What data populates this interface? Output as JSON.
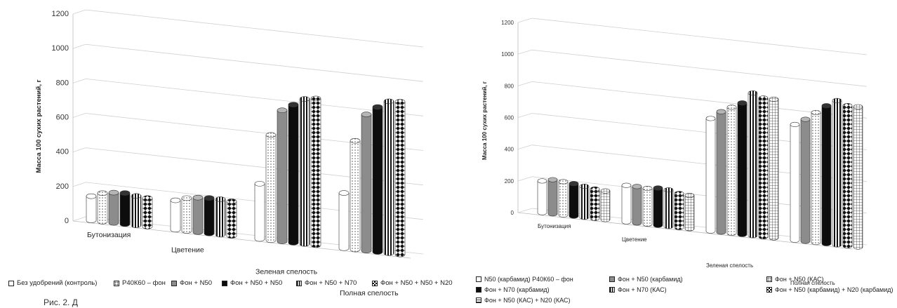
{
  "chart_data": [
    {
      "type": "bar",
      "ylabel": "Масса 100 сухих растений, г",
      "ylim": [
        0,
        1200
      ],
      "yticks": [
        0,
        200,
        400,
        600,
        800,
        1000,
        1200
      ],
      "categories": [
        "Бутонизация",
        "Цветение",
        "Зеленая спелость",
        "Полная спелость"
      ],
      "series": [
        {
          "name": "Без удобрений (контроль)",
          "values": [
            140,
            170,
            320,
            320
          ],
          "pattern": "white"
        },
        {
          "name": "Р40К60 – фон",
          "values": [
            165,
            190,
            610,
            630
          ],
          "pattern": "dots"
        },
        {
          "name": "Фон + N50",
          "values": [
            175,
            200,
            760,
            790
          ],
          "pattern": "gray"
        },
        {
          "name": "Фон + N50 + N50",
          "values": [
            180,
            205,
            800,
            840
          ],
          "pattern": "black"
        },
        {
          "name": "Фон + N50 + N70",
          "values": [
            170,
            205,
            840,
            880
          ],
          "pattern": "vstripes"
        },
        {
          "name": "Фон + N50 + N50 + N20",
          "values": [
            165,
            200,
            850,
            885
          ],
          "pattern": "diamonds"
        }
      ],
      "legend_position": "bottom",
      "grid": true
    },
    {
      "type": "bar",
      "ylabel": "Масса 100 сухих растений, г",
      "ylim": [
        0,
        1200
      ],
      "yticks": [
        0,
        200,
        400,
        600,
        800,
        1000,
        1200
      ],
      "categories": [
        "Бутонизация",
        "Цветение",
        "Зеленая спелость",
        "Полная спелость"
      ],
      "series": [
        {
          "name": "N50 (карбамид) Р40К60 – фон",
          "values": [
            200,
            230,
            710,
            730
          ],
          "pattern": "white"
        },
        {
          "name": "Фон + N50 (карбамид)",
          "values": [
            215,
            230,
            760,
            770
          ],
          "pattern": "gray"
        },
        {
          "name": "Фон + N50 (КАС)",
          "values": [
            210,
            225,
            795,
            820
          ],
          "pattern": "dots"
        },
        {
          "name": "Фон + N70 (карбамид)",
          "values": [
            205,
            235,
            830,
            870
          ],
          "pattern": "black"
        },
        {
          "name": "Фон + N70 (КАС)",
          "values": [
            195,
            230,
            900,
            910
          ],
          "pattern": "vstripes"
        },
        {
          "name": "Фон + N50 (карбамид) + N20 (карбамид)",
          "values": [
            185,
            215,
            875,
            885
          ],
          "pattern": "diamonds"
        },
        {
          "name": "Фон + N50 (КАС) + N20 (КАС)",
          "values": [
            180,
            210,
            875,
            885
          ],
          "pattern": "grid"
        }
      ],
      "legend_position": "bottom",
      "grid": true
    }
  ],
  "caption": "Рис. 2. Д"
}
